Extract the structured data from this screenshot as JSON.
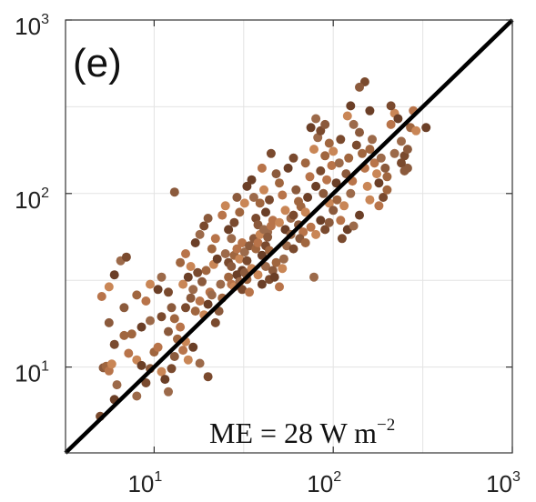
{
  "chart_data": {
    "type": "scatter",
    "title": "",
    "xlabel": "",
    "ylabel": "",
    "xscale": "log",
    "yscale": "log",
    "xlim": [
      3.2,
      1000
    ],
    "ylim": [
      3.2,
      1000
    ],
    "grid": true,
    "panel_label": "(e)",
    "annotation": {
      "prefix": "ME = 28 W m",
      "exponent": "−2"
    },
    "x_ticks": [
      {
        "value": 10,
        "base": "10",
        "exp": "1"
      },
      {
        "value": 100,
        "base": "10",
        "exp": "2"
      },
      {
        "value": 1000,
        "base": "10",
        "exp": "3"
      }
    ],
    "y_ticks": [
      {
        "value": 10,
        "base": "10",
        "exp": "1"
      },
      {
        "value": 100,
        "base": "10",
        "exp": "2"
      },
      {
        "value": 1000,
        "base": "10",
        "exp": "3"
      }
    ],
    "reference_line": {
      "from": [
        3.2,
        3.2
      ],
      "to": [
        1000,
        1000
      ],
      "color": "#000000"
    },
    "point_colors": [
      "#7a4a2e",
      "#8b5a3c",
      "#a0663f",
      "#b8744a",
      "#c98656",
      "#6b3f27",
      "#9c6a4a"
    ],
    "points": [
      [
        5.0,
        5.2
      ],
      [
        5.2,
        9.9
      ],
      [
        5.4,
        10.1
      ],
      [
        5.6,
        9.5
      ],
      [
        5.8,
        10.4
      ],
      [
        6.0,
        6.5
      ],
      [
        6.2,
        7.9
      ],
      [
        6.0,
        13.5
      ],
      [
        5.6,
        18.0
      ],
      [
        6.8,
        15.2
      ],
      [
        5.1,
        25.5
      ],
      [
        5.6,
        29.0
      ],
      [
        6.0,
        34.0
      ],
      [
        6.5,
        41.0
      ],
      [
        7.0,
        43.0
      ],
      [
        6.8,
        22.0
      ],
      [
        7.5,
        15.5
      ],
      [
        7.2,
        12.0
      ],
      [
        8.0,
        11.0
      ],
      [
        8.5,
        10.2
      ],
      [
        8.0,
        6.8
      ],
      [
        9.0,
        8.1
      ],
      [
        9.5,
        9.8
      ],
      [
        10.0,
        12.2
      ],
      [
        10.5,
        13.0
      ],
      [
        11.0,
        9.4
      ],
      [
        11.5,
        8.5
      ],
      [
        12.0,
        7.2
      ],
      [
        12.5,
        9.8
      ],
      [
        13.0,
        11.5
      ],
      [
        8.0,
        26.0
      ],
      [
        9.0,
        24.0
      ],
      [
        9.5,
        30.0
      ],
      [
        10.5,
        28.0
      ],
      [
        11.0,
        33.0
      ],
      [
        12.0,
        27.0
      ],
      [
        12.5,
        22.0
      ],
      [
        13.0,
        19.0
      ],
      [
        14.0,
        17.0
      ],
      [
        15.0,
        14.0
      ],
      [
        8.5,
        17.0
      ],
      [
        9.5,
        18.5
      ],
      [
        11.0,
        19.5
      ],
      [
        12.0,
        16.0
      ],
      [
        13.5,
        14.5
      ],
      [
        14.5,
        12.5
      ],
      [
        15.5,
        11.0
      ],
      [
        16.5,
        13.0
      ],
      [
        18.0,
        10.5
      ],
      [
        20.0,
        8.8
      ],
      [
        13.0,
        102.0
      ],
      [
        14.0,
        40.0
      ],
      [
        15.0,
        45.0
      ],
      [
        16.0,
        38.0
      ],
      [
        17.0,
        52.0
      ],
      [
        18.0,
        58.0
      ],
      [
        19.0,
        65.0
      ],
      [
        20.0,
        72.0
      ],
      [
        21.0,
        48.0
      ],
      [
        22.0,
        55.0
      ],
      [
        14.5,
        30.0
      ],
      [
        15.5,
        33.0
      ],
      [
        16.5,
        28.0
      ],
      [
        17.5,
        35.0
      ],
      [
        18.5,
        31.0
      ],
      [
        19.5,
        36.0
      ],
      [
        20.5,
        27.0
      ],
      [
        21.5,
        39.0
      ],
      [
        22.5,
        42.0
      ],
      [
        23.5,
        30.0
      ],
      [
        15.0,
        22.0
      ],
      [
        16.0,
        25.0
      ],
      [
        17.0,
        21.0
      ],
      [
        18.0,
        24.0
      ],
      [
        19.0,
        20.0
      ],
      [
        20.0,
        23.0
      ],
      [
        21.0,
        26.0
      ],
      [
        22.0,
        18.0
      ],
      [
        23.0,
        21.0
      ],
      [
        24.0,
        25.0
      ],
      [
        24.0,
        75.0
      ],
      [
        25.0,
        85.0
      ],
      [
        26.0,
        62.0
      ],
      [
        27.0,
        55.0
      ],
      [
        28.0,
        68.0
      ],
      [
        29.0,
        95.0
      ],
      [
        30.0,
        78.0
      ],
      [
        31.0,
        52.0
      ],
      [
        32.0,
        88.0
      ],
      [
        33.0,
        110.0
      ],
      [
        25.0,
        45.0
      ],
      [
        26.0,
        40.0
      ],
      [
        27.0,
        38.0
      ],
      [
        28.0,
        44.0
      ],
      [
        29.0,
        48.0
      ],
      [
        30.0,
        42.0
      ],
      [
        31.0,
        36.0
      ],
      [
        32.0,
        46.0
      ],
      [
        33.0,
        41.0
      ],
      [
        34.0,
        50.0
      ],
      [
        26.0,
        33.0
      ],
      [
        27.0,
        30.0
      ],
      [
        28.0,
        29.0
      ],
      [
        29.0,
        34.0
      ],
      [
        30.0,
        31.0
      ],
      [
        31.0,
        28.0
      ],
      [
        32.0,
        35.0
      ],
      [
        33.0,
        32.0
      ],
      [
        34.0,
        27.0
      ],
      [
        35.0,
        37.0
      ],
      [
        35.0,
        120.0
      ],
      [
        36.0,
        95.0
      ],
      [
        37.0,
        72.0
      ],
      [
        38.0,
        66.0
      ],
      [
        39.0,
        88.0
      ],
      [
        40.0,
        140.0
      ],
      [
        41.0,
        105.0
      ],
      [
        42.0,
        78.0
      ],
      [
        43.0,
        60.0
      ],
      [
        44.0,
        92.0
      ],
      [
        36.0,
        55.0
      ],
      [
        37.0,
        48.0
      ],
      [
        38.0,
        52.0
      ],
      [
        39.0,
        58.0
      ],
      [
        40.0,
        44.0
      ],
      [
        41.0,
        62.0
      ],
      [
        42.0,
        50.0
      ],
      [
        43.0,
        56.0
      ],
      [
        44.0,
        47.0
      ],
      [
        45.0,
        65.0
      ],
      [
        38.0,
        34.0
      ],
      [
        40.0,
        30.0
      ],
      [
        42.0,
        38.0
      ],
      [
        44.0,
        32.0
      ],
      [
        46.0,
        36.0
      ],
      [
        48.0,
        40.0
      ],
      [
        50.0,
        29.0
      ],
      [
        52.0,
        37.0
      ],
      [
        47.0,
        33.0
      ],
      [
        53.0,
        42.0
      ],
      [
        45.0,
        170.0
      ],
      [
        48.0,
        130.0
      ],
      [
        50.0,
        115.0
      ],
      [
        52.0,
        98.0
      ],
      [
        54.0,
        80.0
      ],
      [
        56.0,
        140.0
      ],
      [
        58.0,
        72.0
      ],
      [
        60.0,
        160.0
      ],
      [
        62.0,
        105.0
      ],
      [
        64.0,
        90.0
      ],
      [
        46.0,
        70.0
      ],
      [
        50.0,
        68.0
      ],
      [
        54.0,
        62.0
      ],
      [
        58.0,
        58.0
      ],
      [
        60.0,
        75.0
      ],
      [
        64.0,
        66.0
      ],
      [
        66.0,
        84.0
      ],
      [
        68.0,
        60.0
      ],
      [
        70.0,
        78.0
      ],
      [
        72.0,
        95.0
      ],
      [
        55.0,
        50.0
      ],
      [
        60.0,
        48.0
      ],
      [
        65.0,
        55.0
      ],
      [
        70.0,
        52.0
      ],
      [
        75.0,
        64.0
      ],
      [
        80.0,
        58.0
      ],
      [
        85.0,
        70.0
      ],
      [
        78.0,
        33.0
      ],
      [
        90.0,
        62.0
      ],
      [
        95.0,
        68.0
      ],
      [
        70.0,
        150.0
      ],
      [
        74.0,
        125.0
      ],
      [
        78.0,
        180.0
      ],
      [
        80.0,
        110.0
      ],
      [
        82.0,
        210.0
      ],
      [
        85.0,
        135.0
      ],
      [
        88.0,
        100.0
      ],
      [
        90.0,
        165.0
      ],
      [
        92.0,
        120.0
      ],
      [
        95.0,
        88.0
      ],
      [
        75.0,
        240.0
      ],
      [
        80.0,
        270.0
      ],
      [
        85.0,
        230.0
      ],
      [
        90.0,
        250.0
      ],
      [
        95.0,
        195.0
      ],
      [
        98.0,
        145.0
      ],
      [
        100.0,
        175.0
      ],
      [
        104.0,
        115.0
      ],
      [
        108.0,
        150.0
      ],
      [
        110.0,
        205.0
      ],
      [
        100.0,
        80.0
      ],
      [
        105.0,
        92.0
      ],
      [
        110.0,
        70.0
      ],
      [
        115.0,
        85.0
      ],
      [
        120.0,
        62.0
      ],
      [
        125.0,
        100.0
      ],
      [
        112.0,
        55.0
      ],
      [
        118.0,
        130.0
      ],
      [
        122.0,
        160.0
      ],
      [
        128.0,
        118.0
      ],
      [
        120.0,
        280.0
      ],
      [
        125.0,
        320.0
      ],
      [
        130.0,
        250.0
      ],
      [
        135.0,
        190.0
      ],
      [
        140.0,
        225.0
      ],
      [
        145.0,
        170.0
      ],
      [
        150.0,
        140.0
      ],
      [
        155.0,
        110.0
      ],
      [
        160.0,
        300.0
      ],
      [
        165.0,
        205.0
      ],
      [
        150.0,
        440.0
      ],
      [
        140.0,
        410.0
      ],
      [
        160.0,
        180.0
      ],
      [
        170.0,
        150.0
      ],
      [
        175.0,
        130.0
      ],
      [
        180.0,
        115.0
      ],
      [
        185.0,
        160.0
      ],
      [
        190.0,
        95.0
      ],
      [
        195.0,
        140.0
      ],
      [
        200.0,
        125.0
      ],
      [
        210.0,
        250.0
      ],
      [
        220.0,
        290.0
      ],
      [
        230.0,
        270.0
      ],
      [
        240.0,
        200.0
      ],
      [
        250.0,
        165.0
      ],
      [
        260.0,
        140.0
      ],
      [
        270.0,
        240.0
      ],
      [
        280.0,
        300.0
      ],
      [
        290.0,
        230.0
      ],
      [
        330.0,
        240.0
      ],
      [
        220.0,
        170.0
      ],
      [
        240.0,
        150.0
      ],
      [
        250.0,
        135.0
      ],
      [
        200.0,
        105.0
      ],
      [
        180.0,
        85.0
      ],
      [
        160.0,
        92.0
      ],
      [
        140.0,
        75.0
      ],
      [
        130.0,
        65.0
      ],
      [
        210.0,
        320.0
      ],
      [
        260.0,
        180.0
      ]
    ]
  }
}
